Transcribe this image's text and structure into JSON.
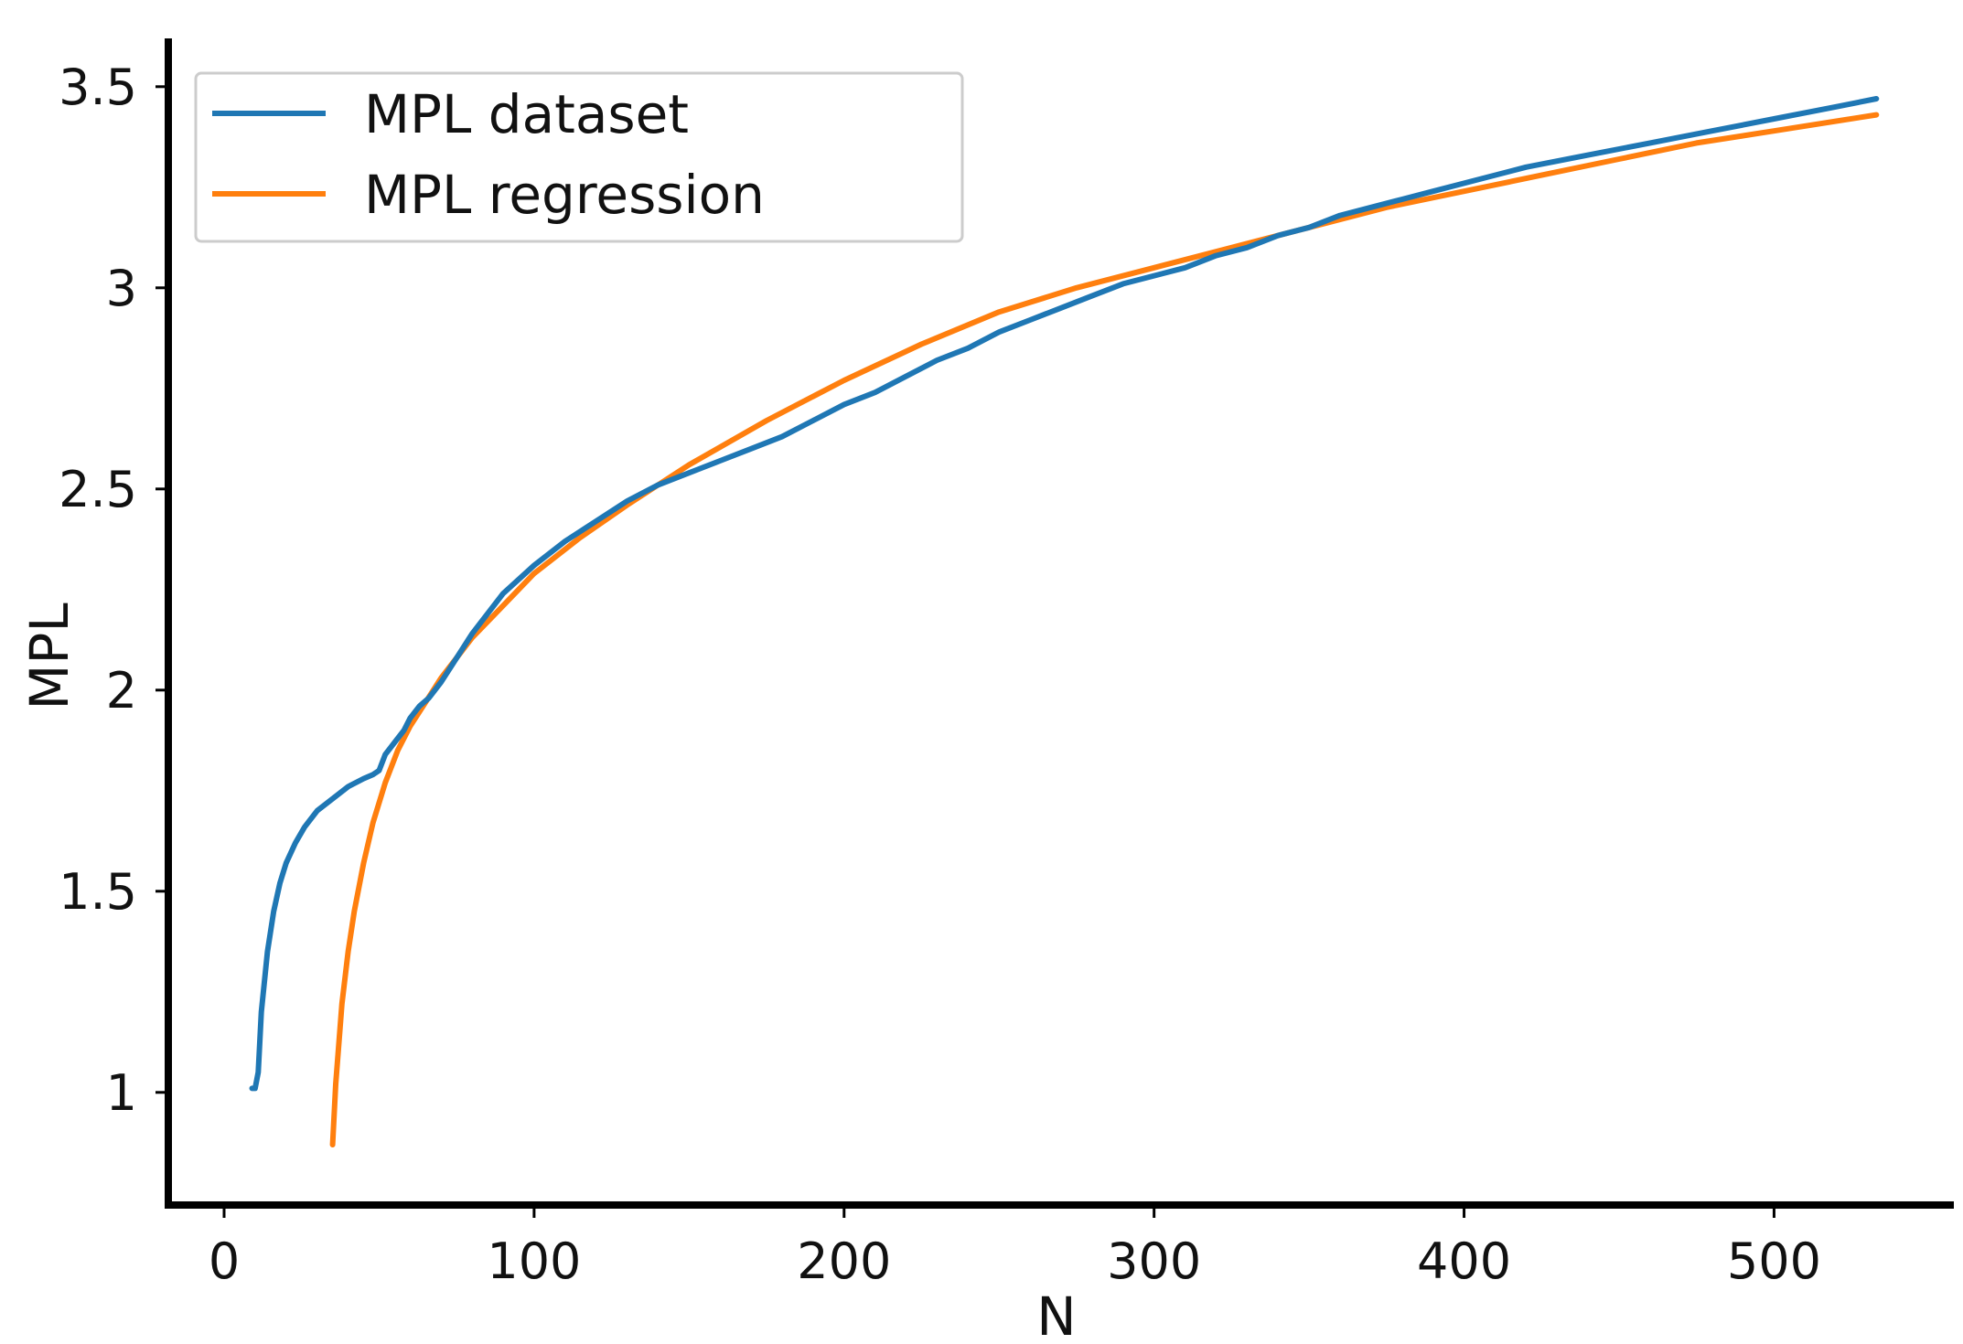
{
  "chart_data": {
    "type": "line",
    "title": "",
    "xlabel": "N",
    "ylabel": "MPL",
    "xlim": [
      -18,
      558
    ],
    "ylim": [
      0.72,
      3.62
    ],
    "x_ticks": [
      0,
      100,
      200,
      300,
      400,
      500
    ],
    "x_tick_labels": [
      "0",
      "100",
      "200",
      "300",
      "400",
      "500"
    ],
    "y_ticks": [
      1,
      1.5,
      2,
      2.5,
      3,
      3.5
    ],
    "y_tick_labels": [
      "1",
      "1.5",
      "2",
      "2.5",
      "3",
      "3.5"
    ],
    "grid": false,
    "legend_position": "top-left",
    "colors": {
      "MPL dataset": "#1f77b4",
      "MPL regression": "#ff7f0e"
    },
    "series": [
      {
        "name": "MPL dataset",
        "x": [
          9,
          10,
          11,
          12,
          14,
          16,
          18,
          20,
          23,
          26,
          30,
          35,
          40,
          45,
          48,
          50,
          52,
          55,
          58,
          60,
          63,
          66,
          70,
          75,
          80,
          90,
          100,
          110,
          120,
          130,
          140,
          150,
          160,
          170,
          180,
          190,
          200,
          210,
          220,
          230,
          240,
          250,
          260,
          270,
          280,
          290,
          300,
          310,
          320,
          330,
          340,
          350,
          360,
          370,
          380,
          390,
          400,
          420,
          440,
          460,
          480,
          500,
          520,
          533
        ],
        "y": [
          1.01,
          1.01,
          1.05,
          1.2,
          1.35,
          1.45,
          1.52,
          1.57,
          1.62,
          1.66,
          1.7,
          1.73,
          1.76,
          1.78,
          1.79,
          1.8,
          1.84,
          1.87,
          1.9,
          1.93,
          1.96,
          1.98,
          2.02,
          2.08,
          2.14,
          2.24,
          2.31,
          2.37,
          2.42,
          2.47,
          2.51,
          2.54,
          2.57,
          2.6,
          2.63,
          2.67,
          2.71,
          2.74,
          2.78,
          2.82,
          2.85,
          2.89,
          2.92,
          2.95,
          2.98,
          3.01,
          3.03,
          3.05,
          3.08,
          3.1,
          3.13,
          3.15,
          3.18,
          3.2,
          3.22,
          3.24,
          3.26,
          3.3,
          3.33,
          3.36,
          3.39,
          3.42,
          3.45,
          3.47
        ]
      },
      {
        "name": "MPL regression",
        "x": [
          35,
          36,
          38,
          40,
          42,
          45,
          48,
          52,
          56,
          60,
          65,
          70,
          80,
          90,
          100,
          115,
          130,
          150,
          175,
          200,
          225,
          250,
          275,
          300,
          325,
          350,
          375,
          400,
          425,
          450,
          475,
          500,
          533
        ],
        "y": [
          0.87,
          1.02,
          1.22,
          1.35,
          1.45,
          1.57,
          1.67,
          1.77,
          1.85,
          1.91,
          1.97,
          2.03,
          2.13,
          2.21,
          2.29,
          2.38,
          2.46,
          2.56,
          2.67,
          2.77,
          2.86,
          2.94,
          3.0,
          3.05,
          3.1,
          3.15,
          3.2,
          3.24,
          3.28,
          3.32,
          3.36,
          3.39,
          3.43
        ]
      }
    ]
  }
}
